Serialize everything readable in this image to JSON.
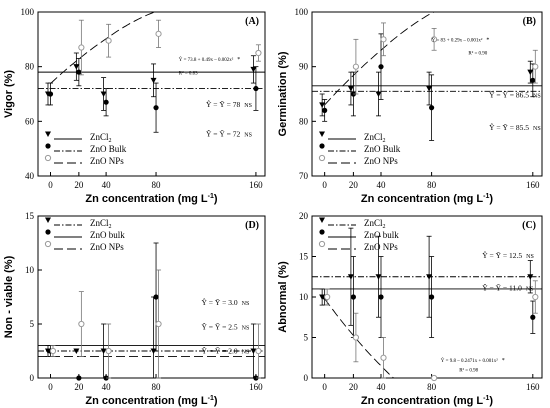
{
  "chart_data": [
    {
      "id": "A",
      "type": "scatter",
      "panel_label": "(A)",
      "xlabel": "Zn concentration (mg L-1)",
      "ylabel": "Vigor (%)",
      "x_ticks": [
        0,
        20,
        40,
        80,
        160
      ],
      "y_ticks": [
        40,
        60,
        80,
        100
      ],
      "ylim": [
        40,
        100
      ],
      "x_display": "categorical",
      "series": [
        {
          "name": "ZnCl2",
          "marker": "triangle-down",
          "values": [
            70,
            80,
            70,
            75,
            79
          ],
          "err": [
            4,
            5,
            6,
            6,
            5
          ]
        },
        {
          "name": "ZnO Bulk",
          "marker": "circle",
          "values": [
            70,
            78,
            67,
            65,
            72
          ],
          "err": [
            4,
            5,
            5,
            9,
            8
          ]
        },
        {
          "name": "ZnO NPs",
          "marker": "circle-open",
          "values": [
            null,
            87,
            89.5,
            92,
            85
          ],
          "err": [
            0,
            10,
            6,
            5,
            3
          ]
        }
      ],
      "fits": [
        {
          "series": "ZnO NPs",
          "kind": "quadratic",
          "coef": [
            73.8,
            0.49,
            -0.002
          ],
          "style": "long-dash"
        },
        {
          "series": "ZnCl2",
          "kind": "constant",
          "value": 78,
          "style": "solid"
        },
        {
          "series": "ZnO Bulk",
          "kind": "constant",
          "value": 72,
          "style": "dash-dot"
        }
      ],
      "annotations": [
        {
          "text": "Ŷ = 73.8 + 0.49x – 0.002x²",
          "sig": "*"
        },
        {
          "text": "R² = 0.83"
        },
        {
          "text": "Ŷ = Ȳ = 78",
          "sig": "NS"
        },
        {
          "text": "Ŷ = Ȳ = 72",
          "sig": "NS"
        }
      ]
    },
    {
      "id": "B",
      "type": "scatter",
      "panel_label": "(B)",
      "xlabel": "Zn concentration (mg L-1)",
      "ylabel": "Germination (%)",
      "x_ticks": [
        0,
        20,
        40,
        80,
        160
      ],
      "y_ticks": [
        70,
        80,
        90,
        100
      ],
      "ylim": [
        70,
        100
      ],
      "x_display": "categorical",
      "series": [
        {
          "name": "ZnCl2",
          "marker": "triangle-down",
          "values": [
            83,
            86,
            85,
            86,
            89
          ],
          "err": [
            2,
            3,
            4,
            3,
            2
          ]
        },
        {
          "name": "ZnO Bulk",
          "marker": "circle",
          "values": [
            82,
            85,
            90,
            82.5,
            87.5
          ],
          "err": [
            2,
            4,
            6,
            6,
            3
          ]
        },
        {
          "name": "ZnO NPs",
          "marker": "circle-open",
          "values": [
            null,
            90,
            95,
            95,
            90
          ],
          "err": [
            0,
            5,
            3,
            2,
            3
          ]
        }
      ],
      "fits": [
        {
          "series": "ZnO NPs",
          "kind": "quadratic",
          "coef": [
            83,
            0.29,
            -0.001
          ],
          "style": "long-dash"
        },
        {
          "series": "ZnCl2",
          "kind": "constant",
          "value": 86.5,
          "style": "solid"
        },
        {
          "series": "ZnO Bulk",
          "kind": "constant",
          "value": 85.5,
          "style": "dash-dot"
        }
      ],
      "annotations": [
        {
          "text": "Ŷ = 83 + 0.29x – 0.001x²",
          "sig": "*"
        },
        {
          "text": "R² = 0.90"
        },
        {
          "text": "Ŷ = Ȳ = 86.5",
          "sig": "NS"
        },
        {
          "text": "Ŷ = Ȳ = 85.5",
          "sig": "NS"
        }
      ]
    },
    {
      "id": "D",
      "type": "scatter",
      "panel_label": "(D)",
      "xlabel": "Zn concentration (mg L-1)",
      "ylabel": "Non - viable (%)",
      "x_ticks": [
        0,
        20,
        40,
        80,
        160
      ],
      "y_ticks": [
        0,
        5,
        10,
        15
      ],
      "ylim": [
        0,
        15
      ],
      "x_display": "categorical",
      "series": [
        {
          "name": "ZnCl2",
          "marker": "triangle-down",
          "values": [
            2.5,
            2.5,
            2.5,
            2.5,
            2.5
          ],
          "err": [
            0.5,
            0,
            2.5,
            5,
            2.5
          ]
        },
        {
          "name": "ZnO bulk",
          "marker": "circle",
          "values": [
            2.5,
            0,
            0,
            7.5,
            0
          ],
          "err": [
            0.5,
            0,
            0,
            5,
            0
          ]
        },
        {
          "name": "ZnO NPs",
          "marker": "circle-open",
          "values": [
            2.5,
            5,
            2.5,
            5,
            2.5
          ],
          "err": [
            0.5,
            3,
            2.5,
            5,
            2.5
          ]
        }
      ],
      "fits": [
        {
          "series": "ZnCl2",
          "kind": "constant",
          "value": 2.5,
          "style": "dash-dot"
        },
        {
          "series": "ZnO bulk",
          "kind": "constant",
          "value": 3.0,
          "style": "solid"
        },
        {
          "series": "ZnO NPs",
          "kind": "constant",
          "value": 2.0,
          "style": "long-dash"
        }
      ],
      "annotations": [
        {
          "text": "Ŷ = Ȳ = 3.0",
          "sig": "NS"
        },
        {
          "text": "Ŷ = Ȳ = 2.5",
          "sig": "NS"
        },
        {
          "text": "Ŷ = Ȳ = 2.0",
          "sig": "NS"
        }
      ]
    },
    {
      "id": "C",
      "type": "scatter",
      "panel_label": "(C)",
      "xlabel": "Zn concentration (mg L-1)",
      "ylabel": "Abnormal (%)",
      "x_ticks": [
        0,
        20,
        40,
        80,
        160
      ],
      "y_ticks": [
        0,
        5,
        10,
        15,
        20
      ],
      "ylim": [
        0,
        20
      ],
      "x_display": "categorical",
      "series": [
        {
          "name": "ZnCl2",
          "marker": "triangle-down",
          "values": [
            10,
            12.5,
            12.5,
            12.5,
            12.5
          ],
          "err": [
            1,
            6,
            5,
            5,
            2
          ]
        },
        {
          "name": "ZnO bulk",
          "marker": "circle",
          "values": [
            10,
            10,
            10,
            10,
            7.5
          ],
          "err": [
            1,
            5,
            5,
            5,
            2
          ]
        },
        {
          "name": "ZnO NPs",
          "marker": "circle-open",
          "values": [
            10,
            5,
            2.5,
            0,
            10
          ],
          "err": [
            1,
            3,
            2.5,
            0,
            2
          ]
        }
      ],
      "fits": [
        {
          "series": "ZnCl2",
          "kind": "constant",
          "value": 12.5,
          "style": "dash-dot"
        },
        {
          "series": "ZnO bulk",
          "kind": "constant",
          "value": 11.0,
          "style": "solid"
        },
        {
          "series": "ZnO NPs",
          "kind": "quadratic",
          "coef": [
            9.8,
            -0.2471,
            0.001
          ],
          "style": "long-dash"
        }
      ],
      "annotations": [
        {
          "text": "Ŷ = Ȳ = 12.5",
          "sig": "NS"
        },
        {
          "text": "Ŷ = Ȳ = 11.0",
          "sig": "NS"
        },
        {
          "text": "Ŷ = 9.8 – 0.2471x + 0.001x²",
          "sig": "*"
        },
        {
          "text": "R² = 0.98"
        }
      ]
    }
  ]
}
